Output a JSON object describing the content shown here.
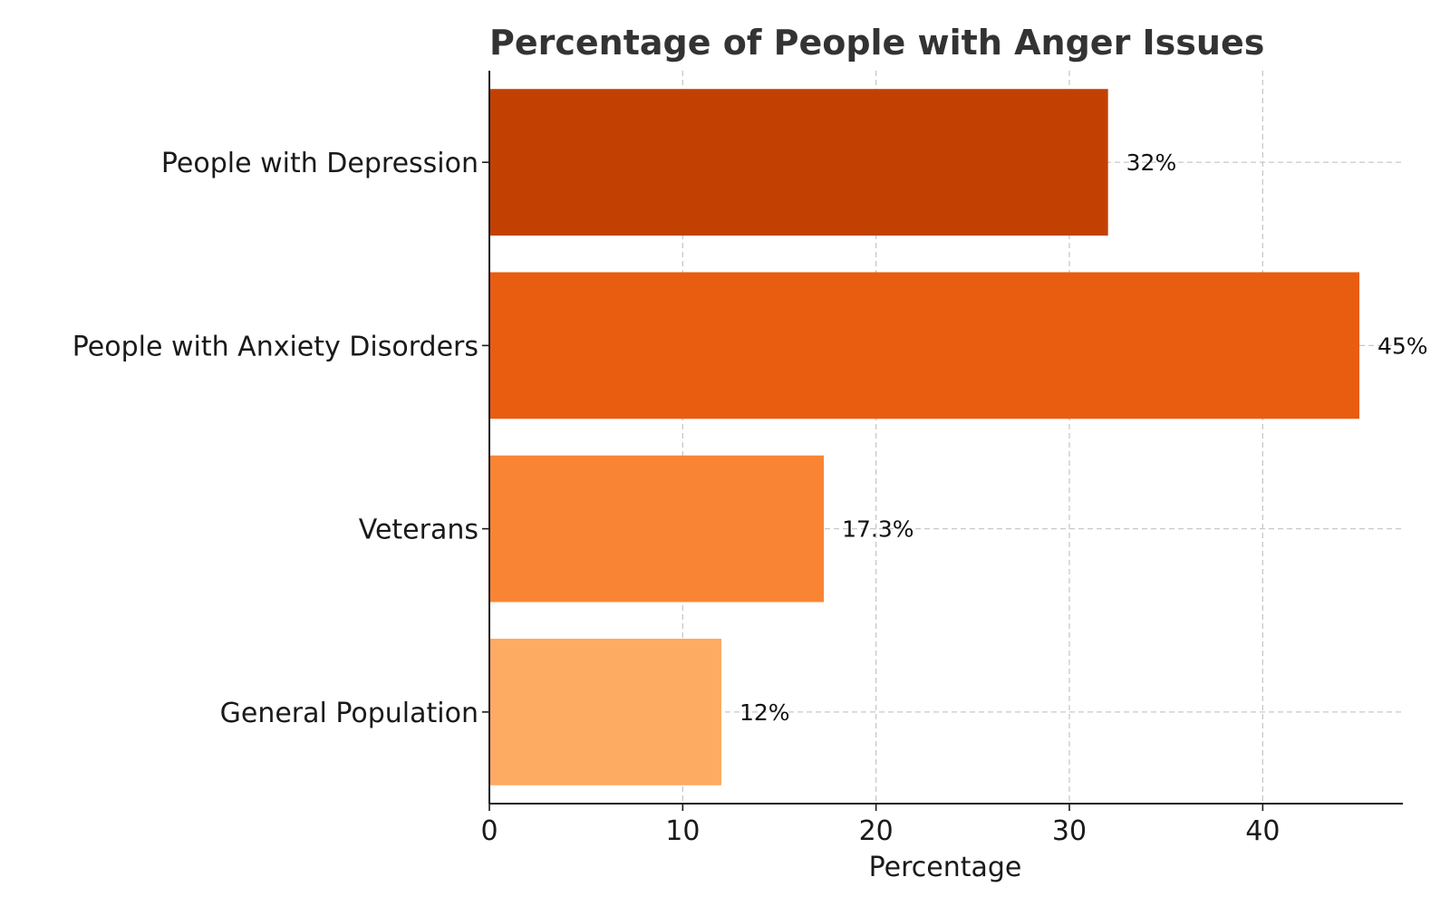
{
  "chart_data": {
    "type": "bar",
    "orientation": "horizontal",
    "title": "Percentage of People with Anger Issues",
    "xlabel": "Percentage",
    "ylabel": "",
    "xlim": [
      0,
      47.25
    ],
    "xticks": [
      0,
      10,
      20,
      30,
      40
    ],
    "grid": true,
    "categories": [
      "General Population",
      "Veterans",
      "People with Anxiety Disorders",
      "People with Depression"
    ],
    "values": [
      12,
      17.3,
      45,
      32
    ],
    "data_labels": [
      "12%",
      "17.3%",
      "45%",
      "32%"
    ],
    "colors": [
      "#fdaa63",
      "#f98534",
      "#e85d10",
      "#c24102"
    ]
  }
}
